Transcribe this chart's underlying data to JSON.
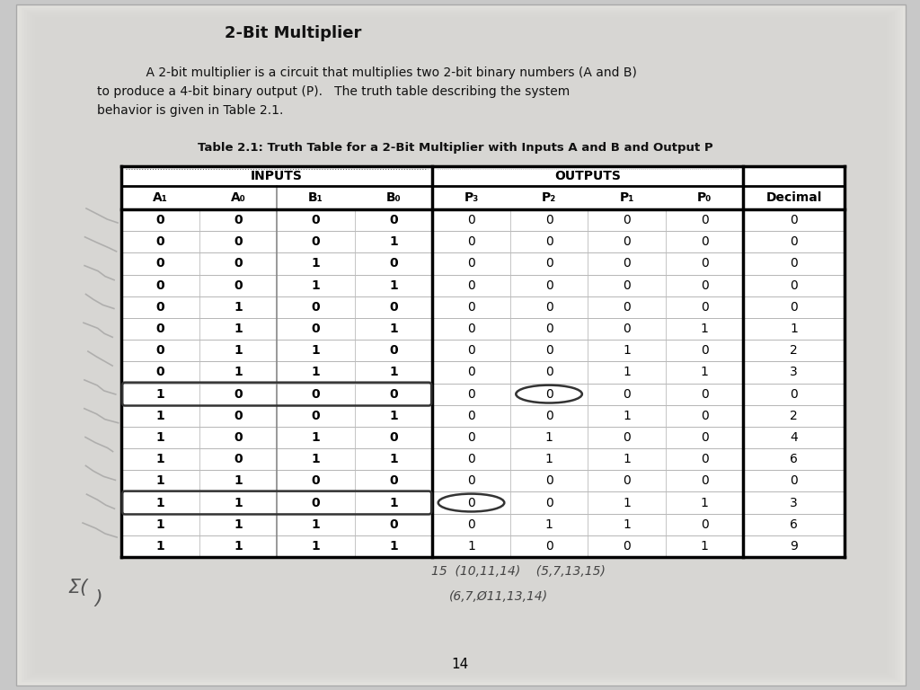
{
  "title": "2-Bit Multiplier",
  "table_caption": "Table 2.1: Truth Table for a 2-Bit Multiplier with Inputs A and B and Output P",
  "desc1": "    A 2-bit multiplier is a circuit that multiplies two 2-bit binary numbers (A and B)",
  "desc2": "to produce a 4-bit binary output (P).   The truth table describing the system",
  "desc3": "behavior is given in Table 2.1.",
  "inputs_label": "INPUTS",
  "outputs_label": "OUTPUTS",
  "col_headers": [
    "A₁",
    "A₀",
    "B₁",
    "B₀",
    "P₃",
    "P₂",
    "P₁",
    "P₀",
    "Decimal"
  ],
  "rows": [
    [
      0,
      0,
      0,
      0,
      0,
      0,
      0,
      0,
      0
    ],
    [
      0,
      0,
      0,
      1,
      0,
      0,
      0,
      0,
      0
    ],
    [
      0,
      0,
      1,
      0,
      0,
      0,
      0,
      0,
      0
    ],
    [
      0,
      0,
      1,
      1,
      0,
      0,
      0,
      0,
      0
    ],
    [
      0,
      1,
      0,
      0,
      0,
      0,
      0,
      0,
      0
    ],
    [
      0,
      1,
      0,
      1,
      0,
      0,
      0,
      1,
      1
    ],
    [
      0,
      1,
      1,
      0,
      0,
      0,
      1,
      0,
      2
    ],
    [
      0,
      1,
      1,
      1,
      0,
      0,
      1,
      1,
      3
    ],
    [
      1,
      0,
      0,
      0,
      0,
      0,
      0,
      0,
      0
    ],
    [
      1,
      0,
      0,
      1,
      0,
      0,
      1,
      0,
      2
    ],
    [
      1,
      0,
      1,
      0,
      0,
      1,
      0,
      0,
      4
    ],
    [
      1,
      0,
      1,
      1,
      0,
      1,
      1,
      0,
      6
    ],
    [
      1,
      1,
      0,
      0,
      0,
      0,
      0,
      0,
      0
    ],
    [
      1,
      1,
      0,
      1,
      0,
      0,
      1,
      1,
      3
    ],
    [
      1,
      1,
      1,
      0,
      0,
      1,
      1,
      0,
      6
    ],
    [
      1,
      1,
      1,
      1,
      1,
      0,
      0,
      1,
      9
    ]
  ],
  "bg_color": "#c8c8c8",
  "page_bg": "#e8e6e2",
  "page_number": "14",
  "note1": "15  (10,11,14)    (5,7,13,15)",
  "note2": "(6,7,Ø11,13,14)",
  "sigma_note": "Σ(",
  "circled_rows_input": [
    8,
    13
  ],
  "circled_p2_row8": true,
  "circled_p3_row13": true
}
